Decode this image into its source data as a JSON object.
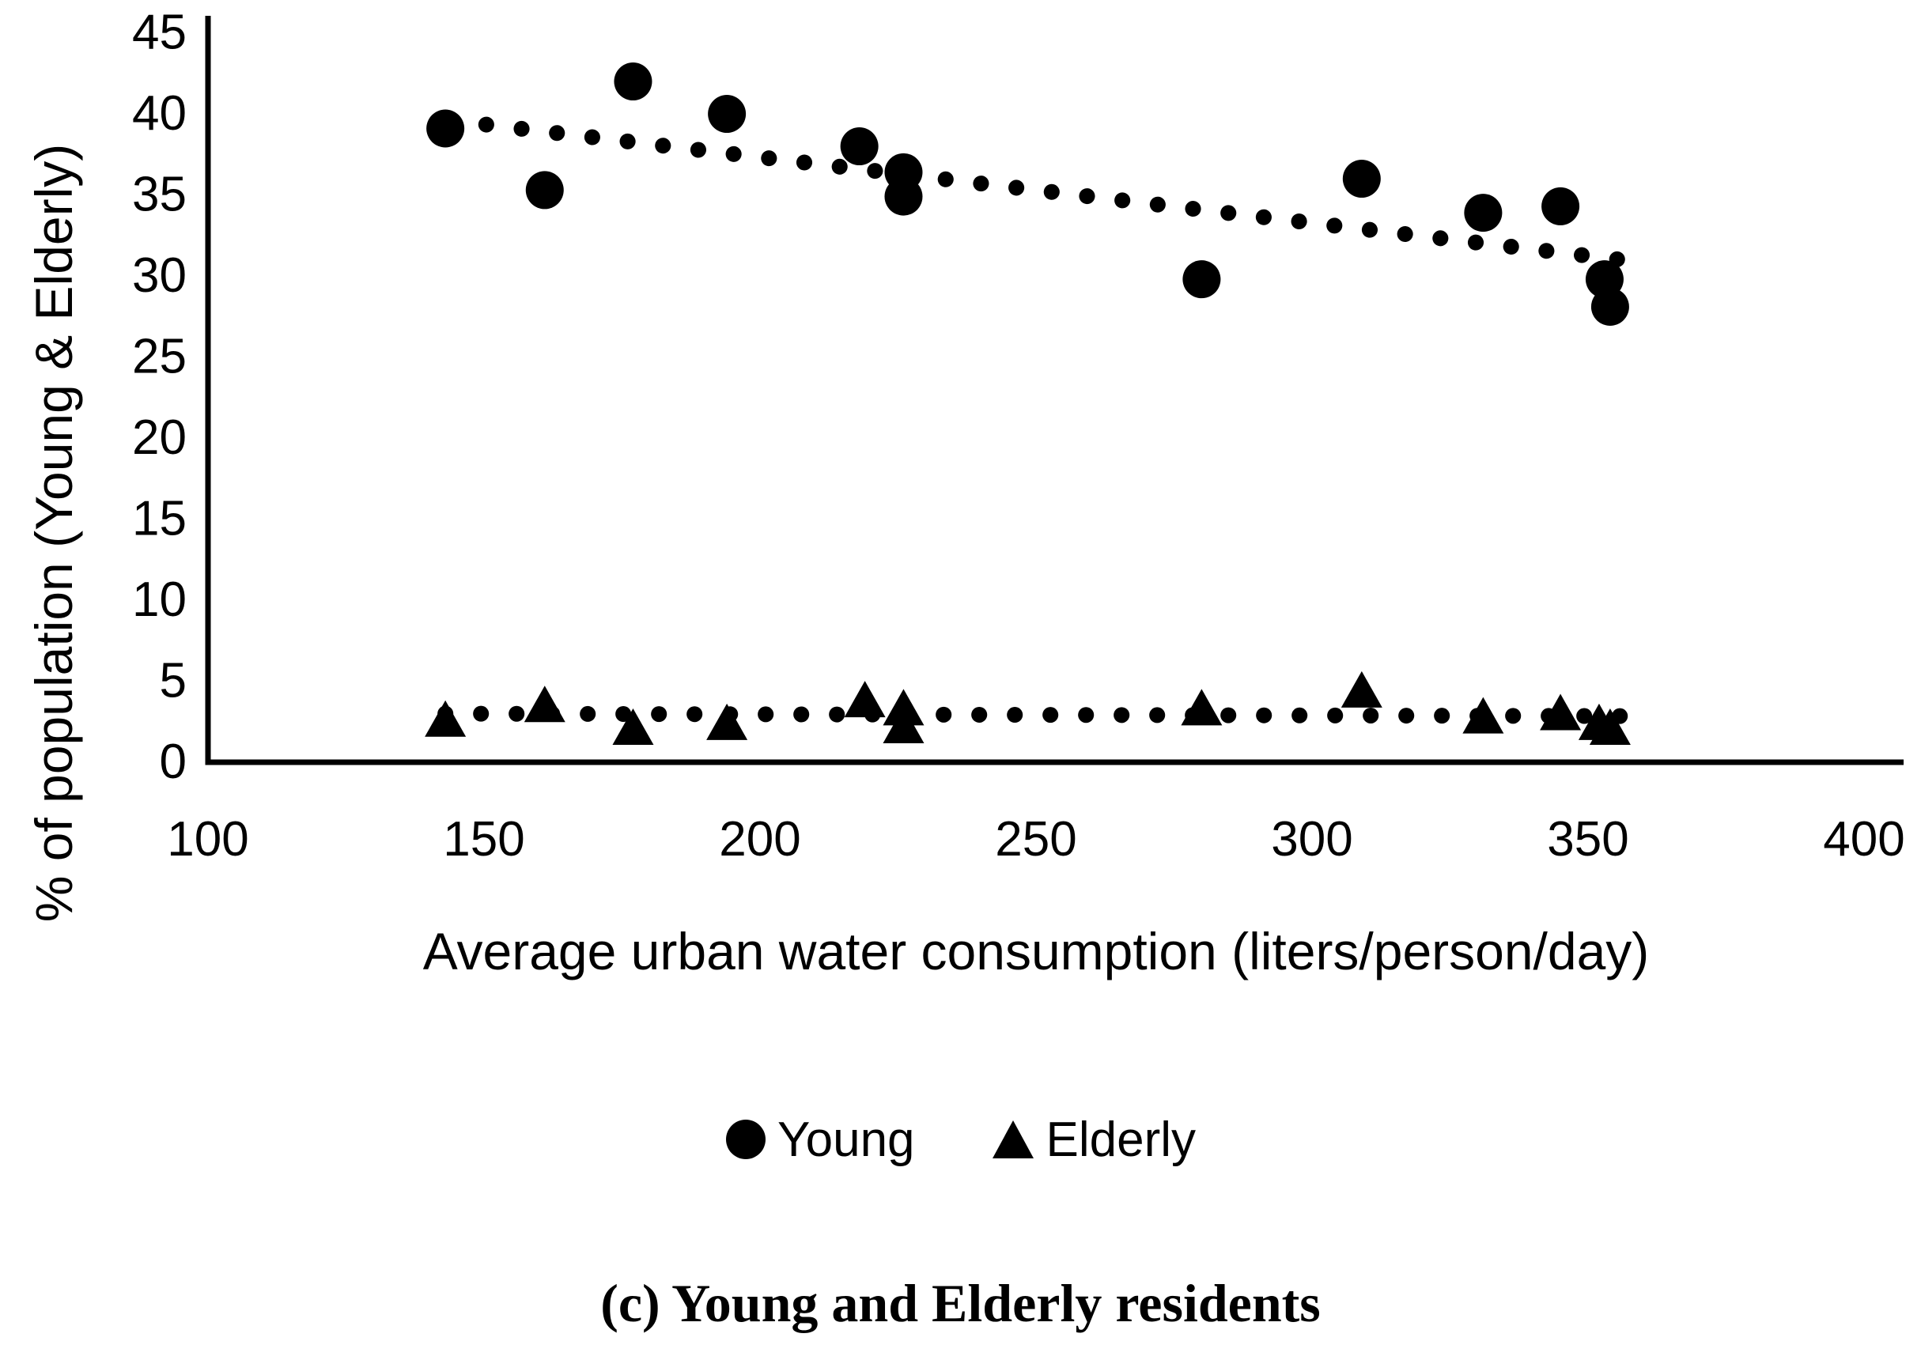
{
  "figure": {
    "caption": "(c) Young and Elderly residents"
  },
  "chart_data": {
    "type": "scatter",
    "title": "",
    "xlabel": "Average urban water consumption (liters/person/day)",
    "ylabel": "% of population (Young & Elderly)",
    "xlim": [
      100,
      400
    ],
    "ylim": [
      0,
      45
    ],
    "x_ticks": [
      100,
      150,
      200,
      250,
      300,
      350,
      400
    ],
    "y_ticks": [
      0,
      5,
      10,
      15,
      20,
      25,
      30,
      35,
      40,
      45
    ],
    "grid": false,
    "legend_position": "bottom-center",
    "marker_color": "#000000",
    "series": [
      {
        "name": "Young",
        "marker": "circle",
        "color": "#000000",
        "points": [
          [
            143,
            39.0
          ],
          [
            161,
            35.2
          ],
          [
            177,
            41.9
          ],
          [
            194,
            39.9
          ],
          [
            218,
            37.9
          ],
          [
            226,
            36.3
          ],
          [
            226,
            34.8
          ],
          [
            280,
            29.7
          ],
          [
            309,
            35.9
          ],
          [
            331,
            33.8
          ],
          [
            345,
            34.2
          ],
          [
            353,
            29.7
          ],
          [
            354,
            28.0
          ]
        ]
      },
      {
        "name": "Elderly",
        "marker": "triangle",
        "color": "#000000",
        "points": [
          [
            143,
            2.5
          ],
          [
            161,
            3.4
          ],
          [
            177,
            2.0
          ],
          [
            194,
            2.3
          ],
          [
            219,
            3.7
          ],
          [
            226,
            3.2
          ],
          [
            226,
            2.1
          ],
          [
            280,
            3.2
          ],
          [
            309,
            4.3
          ],
          [
            331,
            2.7
          ],
          [
            345,
            2.9
          ],
          [
            352,
            2.3
          ],
          [
            354,
            2.0
          ]
        ]
      }
    ],
    "trendlines": [
      {
        "series": "Young",
        "style": "dotted",
        "x1": 144,
        "y1": 39.5,
        "x2": 356,
        "y2": 30.9
      },
      {
        "series": "Elderly",
        "style": "dotted",
        "x1": 143,
        "y1": 2.9,
        "x2": 356,
        "y2": 2.75
      }
    ]
  }
}
